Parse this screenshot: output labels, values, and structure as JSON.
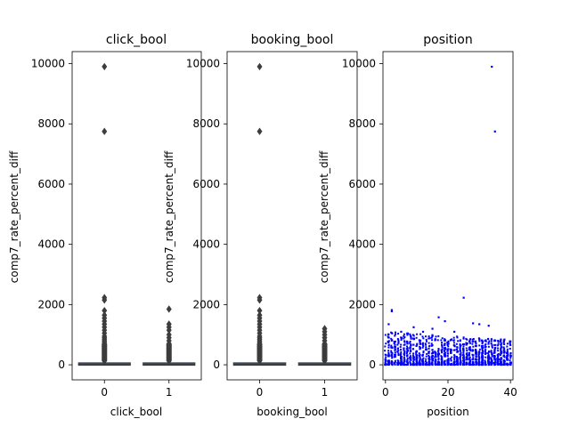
{
  "chart_data": [
    {
      "type": "box",
      "title": "click_bool",
      "xlabel": "click_bool",
      "ylabel": "comp7_rate_percent_diff",
      "categories": [
        "0",
        "1"
      ],
      "ylim": [
        -500,
        10400
      ],
      "yticks": [
        0,
        2000,
        4000,
        6000,
        8000,
        10000
      ],
      "box_color": "#4878b4",
      "groups": [
        {
          "category": "0",
          "median": 20,
          "q1": 5,
          "q3": 45,
          "whisker_low": 0,
          "whisker_high": 100,
          "outliers": [
            9900,
            7750,
            2230,
            2150,
            1800,
            1650,
            1550,
            1450,
            1350,
            1250,
            1150,
            1050,
            950,
            900,
            850,
            800,
            750,
            700,
            650,
            600,
            550,
            500,
            450,
            400,
            350,
            300,
            250,
            200,
            150
          ]
        },
        {
          "category": "1",
          "median": 20,
          "q1": 5,
          "q3": 45,
          "whisker_low": 0,
          "whisker_high": 100,
          "outliers": [
            1850,
            1350,
            1250,
            1150,
            1000,
            900,
            800,
            700,
            650,
            600,
            550,
            500,
            450,
            400,
            350,
            300,
            250,
            200,
            150
          ]
        }
      ]
    },
    {
      "type": "box",
      "title": "booking_bool",
      "xlabel": "booking_bool",
      "ylabel": "comp7_rate_percent_diff",
      "categories": [
        "0",
        "1"
      ],
      "ylim": [
        -500,
        10400
      ],
      "yticks": [
        0,
        2000,
        4000,
        6000,
        8000,
        10000
      ],
      "box_color": "#4878b4",
      "groups": [
        {
          "category": "0",
          "median": 20,
          "q1": 5,
          "q3": 45,
          "whisker_low": 0,
          "whisker_high": 100,
          "outliers": [
            9900,
            7750,
            2230,
            2150,
            1800,
            1650,
            1550,
            1450,
            1350,
            1250,
            1150,
            1050,
            950,
            900,
            850,
            800,
            750,
            700,
            650,
            600,
            550,
            500,
            450,
            400,
            350,
            300,
            250,
            200,
            150
          ]
        },
        {
          "category": "1",
          "median": 20,
          "q1": 5,
          "q3": 45,
          "whisker_low": 0,
          "whisker_high": 100,
          "outliers": [
            1200,
            1100,
            1000,
            900,
            800,
            700,
            650,
            600,
            550,
            500,
            450,
            400,
            350,
            300,
            250,
            200,
            150
          ]
        }
      ]
    },
    {
      "type": "scatter",
      "title": "position",
      "xlabel": "position",
      "ylabel": "comp7_rate_percent_diff",
      "xlim": [
        -0.8,
        40.8
      ],
      "ylim": [
        -500,
        10400
      ],
      "xticks": [
        0,
        20,
        40
      ],
      "yticks": [
        0,
        2000,
        4000,
        6000,
        8000,
        10000
      ],
      "point_color": "#0000ff",
      "highlight_points": [
        {
          "x": 34,
          "y": 9900
        },
        {
          "x": 35,
          "y": 7750
        },
        {
          "x": 25,
          "y": 2230
        },
        {
          "x": 2,
          "y": 1820
        },
        {
          "x": 2,
          "y": 1780
        },
        {
          "x": 17,
          "y": 1580
        },
        {
          "x": 19,
          "y": 1450
        },
        {
          "x": 28,
          "y": 1380
        },
        {
          "x": 30,
          "y": 1350
        },
        {
          "x": 33,
          "y": 1300
        },
        {
          "x": 15,
          "y": 1200
        },
        {
          "x": 9,
          "y": 1250
        },
        {
          "x": 12,
          "y": 1100
        },
        {
          "x": 1,
          "y": 1350
        },
        {
          "x": 5,
          "y": 1100
        },
        {
          "x": 7,
          "y": 1000
        },
        {
          "x": 22,
          "y": 1100
        },
        {
          "x": 36,
          "y": 800
        }
      ],
      "bulk": {
        "x_range": [
          0,
          40
        ],
        "y_range": [
          0,
          1100
        ],
        "count": 1400,
        "seed": 7
      }
    }
  ]
}
